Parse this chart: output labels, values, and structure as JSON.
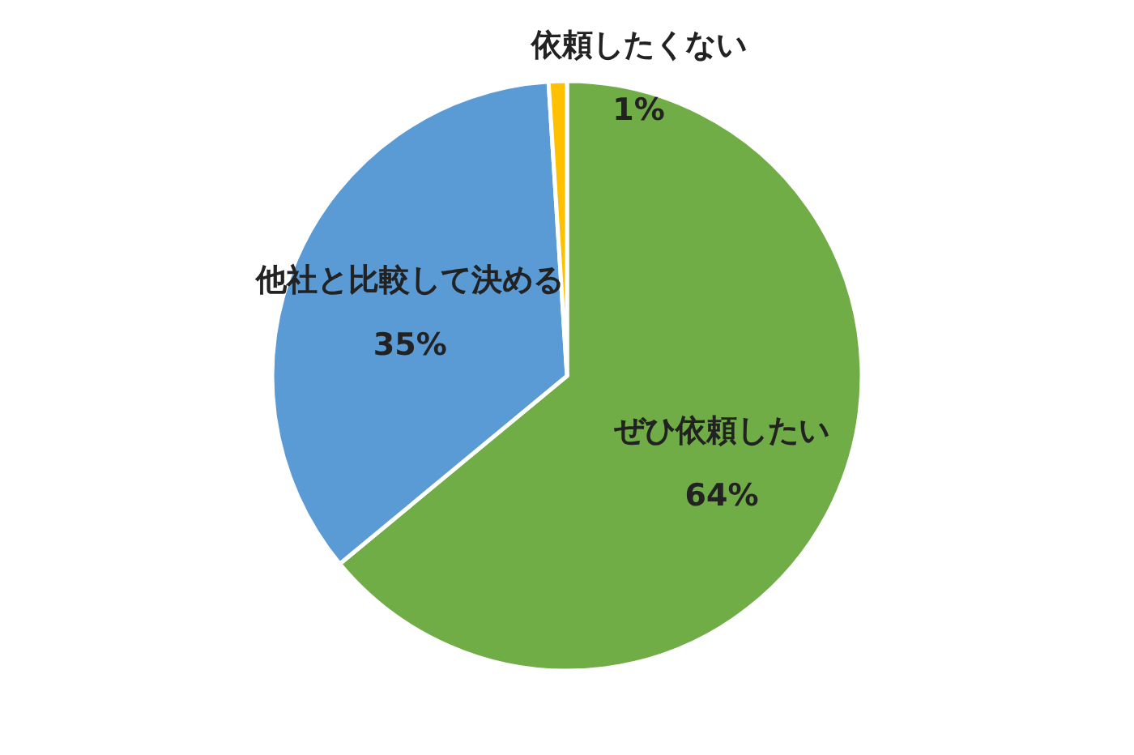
{
  "chart_data": {
    "type": "pie",
    "categories": [
      "ぜひ依頼したい",
      "他社と比較して決める",
      "依頼したくない"
    ],
    "values": [
      64,
      35,
      1
    ],
    "colors": [
      "#70ad47",
      "#5b9bd5",
      "#ffc000"
    ],
    "value_labels": [
      "64%",
      "35%",
      "1%"
    ]
  }
}
